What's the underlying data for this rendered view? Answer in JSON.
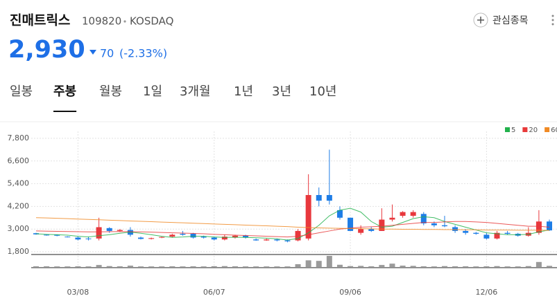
{
  "header": {
    "name": "진매트릭스",
    "code": "109820",
    "market": "KOSDAQ",
    "watch_label": "관심종목"
  },
  "price": {
    "value": "2,930",
    "change": "70",
    "change_pct": "(-2.33%)"
  },
  "tabs": {
    "items": [
      "일봉",
      "주봉",
      "월봉",
      "1일",
      "3개월",
      "1년",
      "3년",
      "10년"
    ],
    "selected": 1
  },
  "chart_data": {
    "type": "candlestick",
    "categories": [
      null,
      null,
      null,
      null,
      "03/08",
      null,
      null,
      null,
      null,
      null,
      null,
      null,
      null,
      null,
      null,
      null,
      null,
      "06/07",
      null,
      null,
      null,
      null,
      null,
      null,
      null,
      null,
      null,
      null,
      null,
      null,
      "09/06",
      null,
      null,
      null,
      null,
      null,
      null,
      null,
      null,
      null,
      null,
      null,
      null,
      "12/06",
      null,
      null,
      null,
      null,
      null,
      null
    ],
    "open": [
      2780,
      2700,
      2700,
      2600,
      2550,
      2500,
      2500,
      3050,
      2900,
      2950,
      2550,
      2480,
      2550,
      2600,
      2750,
      2750,
      2600,
      2550,
      2450,
      2550,
      2650,
      2450,
      2400,
      2450,
      2400,
      2400,
      2500,
      4800,
      4800,
      4000,
      3600,
      2800,
      3000,
      2900,
      3500,
      3700,
      3700,
      3800,
      3300,
      3200,
      3100,
      2900,
      2800,
      2700,
      2500,
      2800,
      2750,
      2650,
      2800,
      3400
    ],
    "high": [
      2800,
      2720,
      2720,
      2620,
      2600,
      2600,
      3600,
      3100,
      3000,
      3100,
      2600,
      2550,
      2600,
      2750,
      2900,
      2800,
      2650,
      2600,
      2700,
      2700,
      2700,
      2500,
      2500,
      2500,
      2450,
      3000,
      5900,
      5200,
      7200,
      4200,
      3600,
      3200,
      3100,
      4100,
      4300,
      3950,
      4000,
      3900,
      3400,
      3700,
      3200,
      3000,
      2850,
      2800,
      2900,
      2900,
      2800,
      3100,
      4000,
      3500
    ],
    "low": [
      2700,
      2650,
      2620,
      2560,
      2400,
      2400,
      2400,
      2800,
      2850,
      2600,
      2450,
      2450,
      2520,
      2550,
      2650,
      2500,
      2500,
      2400,
      2400,
      2500,
      2500,
      2380,
      2380,
      2350,
      2300,
      2350,
      2400,
      4200,
      4300,
      3500,
      2900,
      2700,
      2850,
      2900,
      3400,
      3600,
      3600,
      3200,
      3100,
      3100,
      2800,
      2700,
      2700,
      2450,
      2450,
      2700,
      2600,
      2600,
      2700,
      2900
    ],
    "close": [
      2720,
      2680,
      2650,
      2580,
      2450,
      2480,
      3100,
      2900,
      2950,
      2700,
      2480,
      2520,
      2580,
      2700,
      2700,
      2550,
      2550,
      2450,
      2600,
      2650,
      2550,
      2400,
      2450,
      2400,
      2350,
      2900,
      4800,
      4500,
      4500,
      3600,
      2900,
      3000,
      2900,
      3500,
      3600,
      3900,
      3900,
      3300,
      3200,
      3150,
      2900,
      2800,
      2750,
      2500,
      2800,
      2750,
      2650,
      2800,
      3400,
      2930
    ],
    "volume": [
      6,
      6,
      5,
      5,
      6,
      5,
      18,
      8,
      6,
      12,
      5,
      5,
      5,
      6,
      5,
      6,
      5,
      7,
      8,
      6,
      5,
      5,
      5,
      5,
      5,
      25,
      60,
      55,
      100,
      20,
      8,
      10,
      6,
      18,
      30,
      12,
      10,
      6,
      5,
      8,
      6,
      6,
      5,
      6,
      8,
      5,
      5,
      8,
      45,
      10
    ],
    "volume_lim": [
      0,
      100
    ],
    "up_color": "#e8383d",
    "down_color": "#1e7de6",
    "volume_color": "#9a9a9a",
    "ma": [
      {
        "name": "5",
        "color": "#22b14c",
        "values": [
          2750,
          2720,
          2700,
          2680,
          2620,
          2580,
          2650,
          2700,
          2780,
          2840,
          2780,
          2700,
          2620,
          2560,
          2580,
          2620,
          2620,
          2580,
          2560,
          2570,
          2560,
          2540,
          2520,
          2480,
          2420,
          2500,
          2800,
          3200,
          3700,
          4000,
          4100,
          3900,
          3400,
          3100,
          3150,
          3350,
          3550,
          3650,
          3600,
          3400,
          3250,
          3100,
          2950,
          2800,
          2750,
          2700,
          2700,
          2720,
          2850,
          2950
        ]
      },
      {
        "name": "20",
        "color": "#e83a3a",
        "values": [
          2900,
          2890,
          2880,
          2870,
          2860,
          2850,
          2850,
          2860,
          2870,
          2860,
          2850,
          2840,
          2820,
          2800,
          2790,
          2770,
          2750,
          2720,
          2700,
          2680,
          2660,
          2640,
          2620,
          2600,
          2580,
          2620,
          2700,
          2800,
          2900,
          3000,
          3050,
          3100,
          3120,
          3150,
          3200,
          3250,
          3300,
          3350,
          3350,
          3380,
          3400,
          3400,
          3380,
          3350,
          3300,
          3250,
          3200,
          3150,
          3150,
          3100
        ]
      },
      {
        "name": "60",
        "color": "#f08a24",
        "values": [
          3600,
          3590,
          3570,
          3550,
          3530,
          3510,
          3490,
          3470,
          3450,
          3430,
          3410,
          3390,
          3370,
          3350,
          3330,
          3310,
          3290,
          3270,
          3250,
          3230,
          3210,
          3190,
          3170,
          3150,
          3130,
          3100,
          3080,
          3060,
          3050,
          3040,
          3030,
          3020,
          3010,
          3000,
          3000,
          2990,
          2990,
          2980,
          2980,
          2970,
          2970,
          2960,
          2960,
          2950,
          2950,
          2950,
          2940,
          2940,
          2940,
          2930
        ]
      }
    ],
    "ylim": [
      1800,
      7800
    ],
    "yticks": [
      {
        "value": 1800,
        "label": "1,800"
      },
      {
        "value": 3000,
        "label": "3,000"
      },
      {
        "value": 4200,
        "label": "4,200"
      },
      {
        "value": 5400,
        "label": "5,400"
      },
      {
        "value": 6600,
        "label": "6,600"
      },
      {
        "value": 7800,
        "label": "7,800"
      }
    ],
    "grid": true
  }
}
